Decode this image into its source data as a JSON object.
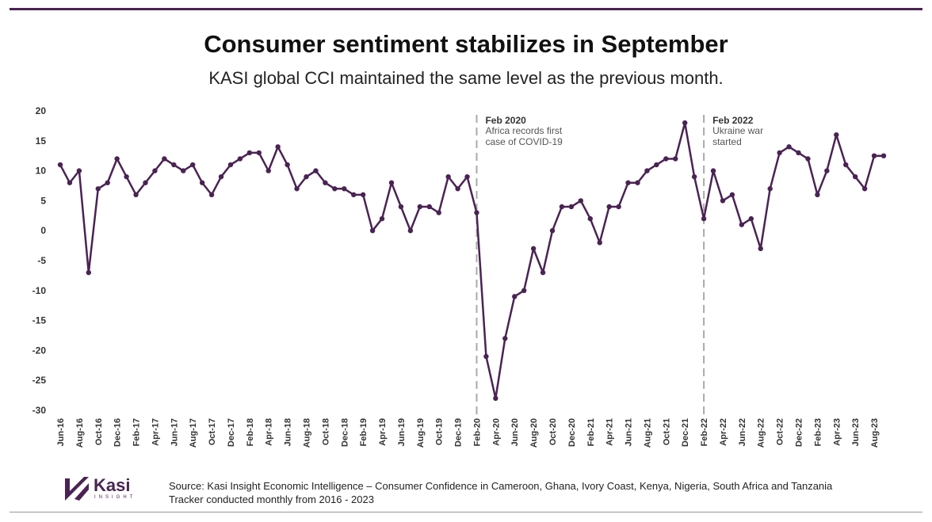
{
  "title": "Consumer sentiment stabilizes in September",
  "subtitle": "KASI global CCI maintained the same level as the previous month.",
  "source_line1": "Source: Kasi Insight Economic Intelligence – Consumer Confidence in Cameroon, Ghana, Ivory Coast, Kenya, Nigeria, South Africa and Tanzania",
  "source_line2": "Tracker conducted monthly from 2016 - 2023",
  "logo": {
    "word": "Kasi",
    "sub": "INSIGHT"
  },
  "colors": {
    "line": "#4a2353",
    "annotation": "#aaaaaa"
  },
  "chart_data": {
    "type": "line",
    "title": "Consumer sentiment stabilizes in September",
    "xlabel": "",
    "ylabel": "",
    "ylim": [
      -30,
      20
    ],
    "yticks": [
      20,
      15,
      10,
      5,
      0,
      -5,
      -10,
      -15,
      -20,
      -25,
      -30
    ],
    "start": "Jun-16",
    "x_tick_labels": [
      "Jun-16",
      "Aug-16",
      "Oct-16",
      "Dec-16",
      "Feb-17",
      "Apr-17",
      "Jun-17",
      "Aug-17",
      "Oct-17",
      "Dec-17",
      "Feb-18",
      "Apr-18",
      "Jun-18",
      "Aug-18",
      "Oct-18",
      "Dec-18",
      "Feb-19",
      "Apr-19",
      "Jun-19",
      "Aug-19",
      "Oct-19",
      "Dec-19",
      "Feb-20",
      "Apr-20",
      "Jun-20",
      "Aug-20",
      "Oct-20",
      "Dec-20",
      "Feb-21",
      "Apr-21",
      "Jun-21",
      "Aug-21",
      "Oct-21",
      "Dec-21",
      "Feb-22",
      "Apr-22",
      "Jun-22",
      "Aug-22",
      "Oct-22",
      "Dec-22",
      "Feb-23",
      "Apr-23",
      "Jun-23",
      "Aug-23"
    ],
    "series": [
      {
        "name": "KASI global CCI",
        "values": [
          11,
          8,
          10,
          -7,
          7,
          8,
          12,
          9,
          6,
          8,
          10,
          12,
          11,
          10,
          11,
          8,
          6,
          9,
          11,
          12,
          13,
          13,
          10,
          14,
          11,
          7,
          9,
          10,
          8,
          7,
          7,
          6,
          6,
          0,
          2,
          8,
          4,
          0,
          4,
          4,
          3,
          9,
          7,
          9,
          3,
          -21,
          -28,
          -18,
          -11,
          -10,
          -3,
          -7,
          0,
          4,
          4,
          5,
          2,
          -2,
          4,
          4,
          8,
          8,
          10,
          11,
          12,
          12,
          18,
          9,
          2,
          10,
          5,
          6,
          1,
          2,
          -3,
          7,
          13,
          14,
          13,
          12,
          6,
          10,
          16,
          11,
          9,
          7,
          12.5,
          12.5
        ]
      }
    ],
    "annotations": [
      {
        "index": 44,
        "heading": "Feb 2020",
        "line1": "Africa records first",
        "line2": "case of COVID-19"
      },
      {
        "index": 68,
        "heading": "Feb 2022",
        "line1": "Ukraine war",
        "line2": "started"
      }
    ],
    "grid": false
  }
}
